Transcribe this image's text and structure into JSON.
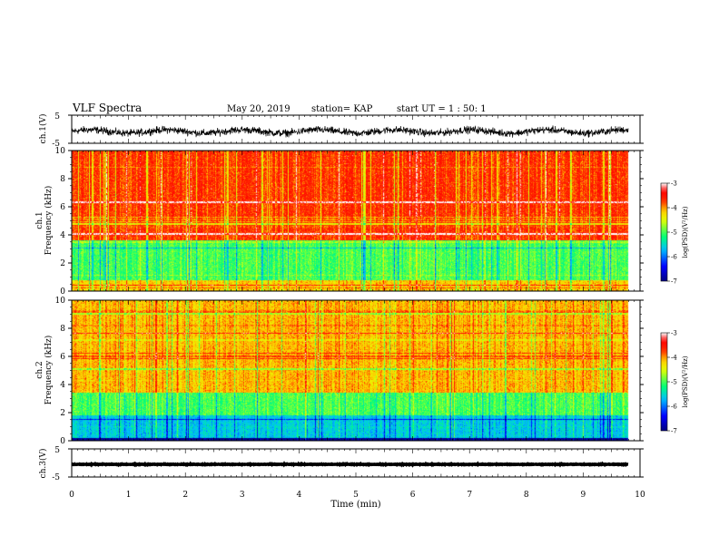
{
  "header": {
    "title": "VLF Spectra",
    "date": "May 20, 2019",
    "station": "station= KAP",
    "start": "start  UT =   1 : 50: 1"
  },
  "chart_data": [
    {
      "type": "line",
      "name": "ch1-waveform",
      "ylabel": "ch.1(V)",
      "ylim": [
        -5,
        5
      ],
      "yticks": [
        "5",
        "-5"
      ],
      "xlim": [
        0,
        10
      ],
      "data_extent_min": 9.8,
      "signal": "noise",
      "mean": -0.8,
      "amplitude": 1.2
    },
    {
      "type": "heatmap",
      "name": "ch1-spectrogram",
      "ylabel_line1": "ch.1",
      "ylabel_line2": "Frequency  (kHz)",
      "ylim": [
        0,
        10
      ],
      "yticks": [
        "0",
        "2",
        "4",
        "6",
        "8",
        "10"
      ],
      "xlim": [
        0,
        10
      ],
      "data_extent_min": 9.8,
      "bands": [
        {
          "from_khz": 3.6,
          "to_khz": 10,
          "mean_log_psd": -3.7
        },
        {
          "from_khz": 0.8,
          "to_khz": 3.6,
          "mean_log_psd": -5.0
        },
        {
          "from_khz": 0,
          "to_khz": 0.8,
          "mean_log_psd": -4.2
        }
      ],
      "colorbar": {
        "label": "log(PSD)(V²/Hz)",
        "min": -7,
        "max": -3,
        "ticks": [
          "-3",
          "-4",
          "-5",
          "-6",
          "-7"
        ]
      }
    },
    {
      "type": "heatmap",
      "name": "ch2-spectrogram",
      "ylabel_line1": "ch.2",
      "ylabel_line2": "Frequency  (kHz)",
      "ylim": [
        0,
        10
      ],
      "yticks": [
        "0",
        "2",
        "4",
        "6",
        "8",
        "10"
      ],
      "xlim": [
        0,
        10
      ],
      "data_extent_min": 9.8,
      "bands": [
        {
          "from_khz": 3.4,
          "to_khz": 10,
          "mean_log_psd": -4.1
        },
        {
          "from_khz": 1.8,
          "to_khz": 3.4,
          "mean_log_psd": -5.0
        },
        {
          "from_khz": 0.2,
          "to_khz": 1.8,
          "mean_log_psd": -5.6
        }
      ],
      "colorbar": {
        "label": "log(PSD)(V²/Hz)",
        "min": -7,
        "max": -3,
        "ticks": [
          "-3",
          "-4",
          "-5",
          "-6",
          "-7"
        ]
      }
    },
    {
      "type": "line",
      "name": "ch3-waveform",
      "ylabel": "ch.3(V)",
      "ylim": [
        -5,
        5
      ],
      "yticks": [
        "5",
        "-5"
      ],
      "xlim": [
        0,
        10
      ],
      "data_extent_min": 9.8,
      "signal": "flat",
      "mean": -0.5,
      "amplitude": 0.15,
      "xlabel": "Time  (min)",
      "xticks": [
        "0",
        "1",
        "2",
        "3",
        "4",
        "5",
        "6",
        "7",
        "8",
        "9",
        "10"
      ]
    }
  ],
  "colors": {
    "palette": [
      "#000080",
      "#0000ff",
      "#00bfff",
      "#00ff7f",
      "#ffff00",
      "#ff0000",
      "#ffffff"
    ]
  }
}
